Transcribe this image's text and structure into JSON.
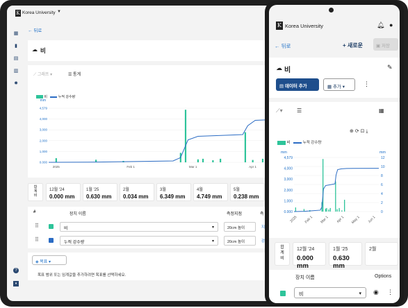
{
  "app": {
    "name": "Korea University"
  },
  "nav": {
    "back": "뒤로"
  },
  "page": {
    "title": "비"
  },
  "toolbar": {
    "graph_label": "그래프",
    "stats_label": "통계",
    "new_label": "새로운",
    "save_label": "저장",
    "add_data_label": "데이터 추가",
    "add_label": "추가"
  },
  "legend": {
    "bar": "비",
    "line": "누적 강수량"
  },
  "chart_data": {
    "type": "bar",
    "ylabel": "mm",
    "x_ticks": [
      "2025",
      "Feb 1",
      "Mar 1",
      "Apr 1"
    ],
    "y_ticks": [
      "4,579",
      "4,000",
      "3,000",
      "2,000",
      "1,000",
      "0.000"
    ],
    "ylim": [
      0,
      4.579
    ],
    "series": [
      {
        "name": "비",
        "type": "bar",
        "points": [
          [
            0.03,
            0.35
          ],
          [
            0.19,
            0.22
          ],
          [
            0.3,
            0.12
          ],
          [
            0.53,
            0.8
          ],
          [
            0.55,
            4.45
          ],
          [
            0.6,
            0.25
          ],
          [
            0.62,
            0.3
          ],
          [
            0.66,
            0.18
          ],
          [
            0.69,
            0.3
          ],
          [
            0.79,
            2.55
          ],
          [
            0.82,
            0.2
          ],
          [
            0.86,
            0.3
          ],
          [
            0.91,
            0.1
          ],
          [
            0.96,
            1.0
          ]
        ]
      },
      {
        "name": "누적 강수량",
        "type": "line",
        "points": [
          [
            0,
            0
          ],
          [
            0.2,
            0.02
          ],
          [
            0.5,
            0.12
          ],
          [
            0.53,
            0.4
          ],
          [
            0.56,
            1.9
          ],
          [
            0.6,
            2.2
          ],
          [
            0.72,
            2.3
          ],
          [
            0.78,
            2.35
          ],
          [
            0.8,
            3.1
          ],
          [
            0.83,
            3.55
          ],
          [
            0.9,
            3.62
          ],
          [
            1,
            3.65
          ]
        ]
      }
    ]
  },
  "phone_chart": {
    "y_left_ticks": [
      "4,579",
      "4,000",
      "3,000",
      "2,000",
      "1,000",
      "0.000"
    ],
    "y_right_ticks": [
      "12",
      "10",
      "8",
      "6",
      "4",
      "2",
      "0"
    ],
    "x_ticks": [
      "2025",
      "Feb 1",
      "Mar 1",
      "Apr 1",
      "May 1",
      "Jun 1"
    ],
    "ylabel_left": "mm",
    "ylabel_right": "mm"
  },
  "stats": {
    "total_label": "합계비",
    "tablet_items": [
      {
        "month": "12월 '24",
        "value": "0.000 mm"
      },
      {
        "month": "1월 '25",
        "value": "0.630 mm"
      },
      {
        "month": "2월",
        "value": "0.034 mm"
      },
      {
        "month": "3월",
        "value": "6.349 mm"
      },
      {
        "month": "4월",
        "value": "4.749 mm"
      },
      {
        "month": "5월",
        "value": "0.238 mm"
      }
    ],
    "phone_items": [
      {
        "month": "12월 '24",
        "value": "0.000 mm"
      },
      {
        "month": "1월 '25",
        "value": "0.630 mm"
      },
      {
        "month": "2월",
        "value": ""
      }
    ]
  },
  "table": {
    "headers": [
      "#",
      "장치 이름",
      "측정지점",
      "측"
    ],
    "rows": [
      {
        "color": "#2ec49a",
        "name": "비",
        "point": "20cm 높이",
        "extra": "지"
      },
      {
        "color": "#2b6cc4",
        "name": "누적 강수량",
        "point": "20cm 높이",
        "extra": "강수"
      }
    ]
  },
  "goal": {
    "label": "목표",
    "help": "목표 범위 또는 임계값을 추가하려면 목표를 선택하세요."
  },
  "phone_table": {
    "header": "장치 이름",
    "options": "Options",
    "row_name": "비"
  }
}
